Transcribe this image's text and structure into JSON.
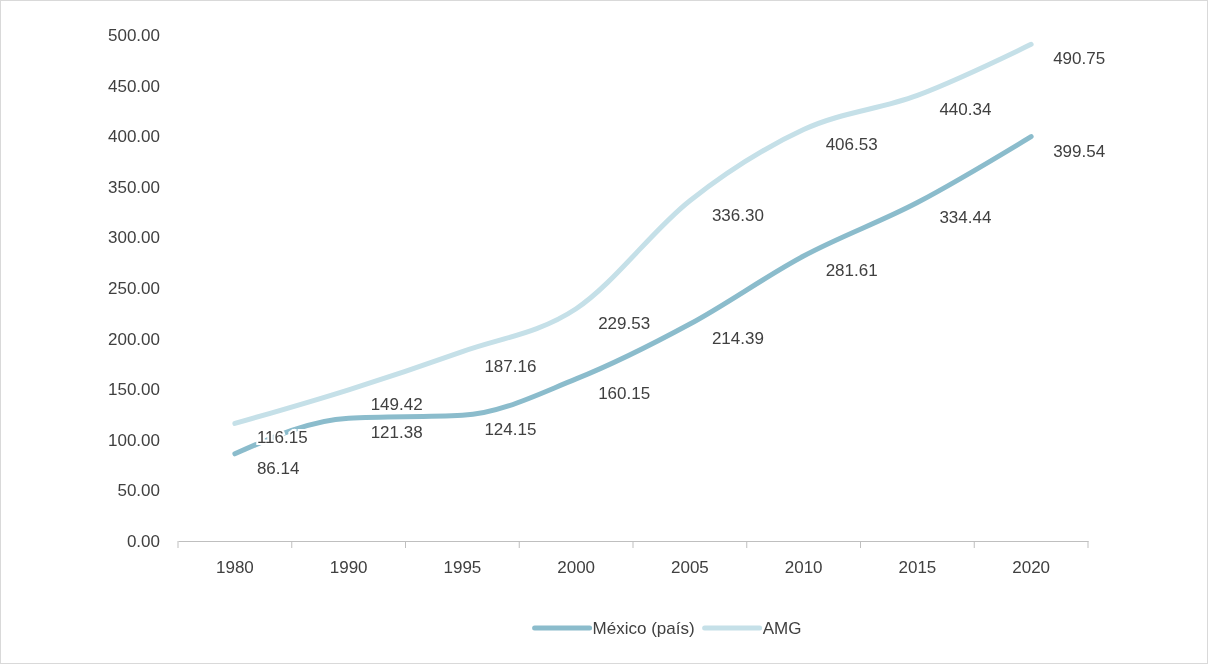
{
  "chart_data": {
    "type": "line",
    "categories": [
      "1980",
      "1990",
      "1995",
      "2000",
      "2005",
      "2010",
      "2015",
      "2020"
    ],
    "series": [
      {
        "name": "México (país)",
        "color": "#8bbccc",
        "values": [
          86.14,
          121.38,
          124.15,
          160.15,
          214.39,
          281.61,
          334.44,
          399.54
        ],
        "value_labels": [
          "86.14",
          "121.38",
          "124.15",
          "160.15",
          "214.39",
          "281.61",
          "334.44",
          "399.54"
        ]
      },
      {
        "name": "AMG",
        "color": "#c5e0e8",
        "values": [
          116.15,
          149.42,
          187.16,
          229.53,
          336.3,
          406.53,
          440.34,
          490.75
        ],
        "value_labels": [
          "116.15",
          "149.42",
          "187.16",
          "229.53",
          "336.30",
          "406.53",
          "440.34",
          "490.75"
        ]
      }
    ],
    "ylim": [
      0,
      500
    ],
    "yticks": [
      {
        "value": 0,
        "label": "0.00"
      },
      {
        "value": 50,
        "label": "50.00"
      },
      {
        "value": 100,
        "label": "100.00"
      },
      {
        "value": 150,
        "label": "150.00"
      },
      {
        "value": 200,
        "label": "200.00"
      },
      {
        "value": 250,
        "label": "250.00"
      },
      {
        "value": 300,
        "label": "300.00"
      },
      {
        "value": 350,
        "label": "350.00"
      },
      {
        "value": 400,
        "label": "400.00"
      },
      {
        "value": 450,
        "label": "450.00"
      },
      {
        "value": 500,
        "label": "500.00"
      }
    ],
    "grid": false,
    "legend": "bottom",
    "marker": "none",
    "line_style": "solid"
  }
}
